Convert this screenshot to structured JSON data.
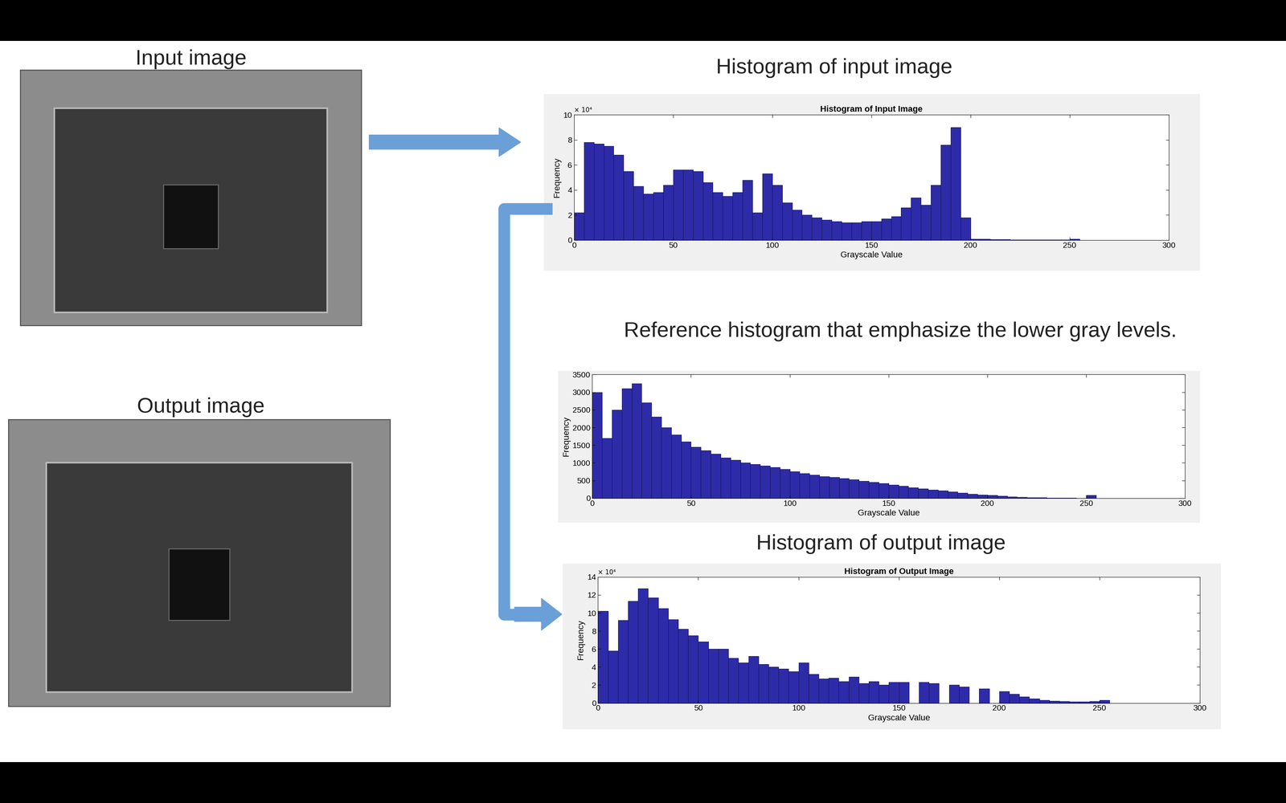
{
  "slide": {
    "input_image_label": "Input image",
    "output_image_label": "Output image",
    "headings": [
      "Histogram of input image",
      "Reference histogram that emphasize the lower gray levels.",
      "Histogram of output image"
    ]
  },
  "chart_data": [
    {
      "type": "histogram",
      "title": "Histogram of Input Image",
      "x_label": "Grayscale Value",
      "y_label": "Frequency",
      "annotations": [
        "× 10⁴"
      ],
      "color": "#2e2ba8",
      "bins": [
        0,
        5,
        10,
        15,
        20,
        25,
        30,
        35,
        40,
        45,
        50,
        55,
        60,
        65,
        70,
        75,
        80,
        85,
        90,
        95,
        100,
        105,
        110,
        115,
        120,
        125,
        130,
        135,
        140,
        145,
        150,
        155,
        160,
        165,
        170,
        175,
        180,
        185,
        190,
        195,
        200,
        205,
        210,
        215,
        220,
        225,
        230,
        235,
        240,
        245,
        250,
        255
      ],
      "counts": [
        2.2,
        7.8,
        7.7,
        7.5,
        6.8,
        5.5,
        4.3,
        3.7,
        3.8,
        4.4,
        5.6,
        5.6,
        5.5,
        4.6,
        3.8,
        3.5,
        3.8,
        4.8,
        2.2,
        5.3,
        4.4,
        3.0,
        2.4,
        2.0,
        1.8,
        1.6,
        1.5,
        1.4,
        1.4,
        1.5,
        1.5,
        1.7,
        1.9,
        2.6,
        3.4,
        2.8,
        4.4,
        7.6,
        9.0,
        1.8,
        0.1,
        0.08,
        0.06,
        0.05,
        0.04,
        0.04,
        0.03,
        0.03,
        0.03,
        0.03,
        0.1
      ],
      "xlim": [
        0,
        300
      ],
      "xticks": [
        0,
        50,
        100,
        150,
        200,
        250,
        300
      ],
      "ylim": [
        0,
        10
      ],
      "yticks": [
        0,
        2,
        4,
        6,
        8,
        10
      ]
    },
    {
      "type": "histogram",
      "x_label": "Grayscale Value",
      "y_label": "Frequency",
      "color": "#2e2ba8",
      "bins": [
        0,
        5,
        10,
        15,
        20,
        25,
        30,
        35,
        40,
        45,
        50,
        55,
        60,
        65,
        70,
        75,
        80,
        85,
        90,
        95,
        100,
        105,
        110,
        115,
        120,
        125,
        130,
        135,
        140,
        145,
        150,
        155,
        160,
        165,
        170,
        175,
        180,
        185,
        190,
        195,
        200,
        205,
        210,
        215,
        220,
        225,
        230,
        235,
        240,
        245,
        250,
        255
      ],
      "counts": [
        3000,
        1700,
        2500,
        3100,
        3250,
        2700,
        2300,
        2000,
        1800,
        1600,
        1450,
        1350,
        1250,
        1150,
        1080,
        1000,
        960,
        920,
        880,
        820,
        760,
        700,
        660,
        620,
        590,
        560,
        530,
        490,
        450,
        420,
        380,
        340,
        300,
        270,
        240,
        210,
        180,
        150,
        120,
        100,
        80,
        60,
        45,
        35,
        25,
        18,
        12,
        8,
        5,
        3,
        80
      ],
      "xlim": [
        0,
        300
      ],
      "xticks": [
        0,
        50,
        100,
        150,
        200,
        250,
        300
      ],
      "ylim": [
        0,
        3500
      ],
      "yticks": [
        0,
        500,
        1000,
        1500,
        2000,
        2500,
        3000,
        3500
      ]
    },
    {
      "type": "histogram",
      "title": "Histogram of Output Image",
      "x_label": "Grayscale Value",
      "y_label": "Frequency",
      "annotations": [
        "× 10⁴"
      ],
      "color": "#2e2ba8",
      "bins": [
        0,
        5,
        10,
        15,
        20,
        25,
        30,
        35,
        40,
        45,
        50,
        55,
        60,
        65,
        70,
        75,
        80,
        85,
        90,
        95,
        100,
        105,
        110,
        115,
        120,
        125,
        130,
        135,
        140,
        145,
        150,
        155,
        160,
        165,
        170,
        175,
        180,
        185,
        190,
        195,
        200,
        205,
        210,
        215,
        220,
        225,
        230,
        235,
        240,
        245,
        250,
        255
      ],
      "counts": [
        10.2,
        5.8,
        9.2,
        11.3,
        12.7,
        11.7,
        10.5,
        9.3,
        8.2,
        7.5,
        6.8,
        6.0,
        6.0,
        5.0,
        4.5,
        5.2,
        4.3,
        4.0,
        3.8,
        3.5,
        4.5,
        3.2,
        2.7,
        2.8,
        2.4,
        2.9,
        2.2,
        2.4,
        2.0,
        2.3,
        2.3,
        0,
        2.3,
        2.2,
        0,
        2.0,
        1.8,
        0,
        1.6,
        0,
        1.3,
        1.0,
        0.7,
        0.5,
        0.3,
        0.25,
        0.2,
        0.15,
        0.15,
        0.2,
        0.3
      ],
      "xlim": [
        0,
        300
      ],
      "xticks": [
        0,
        50,
        100,
        150,
        200,
        250,
        300
      ],
      "ylim": [
        0,
        14
      ],
      "yticks": [
        0,
        2,
        4,
        6,
        8,
        10,
        12,
        14
      ]
    }
  ]
}
